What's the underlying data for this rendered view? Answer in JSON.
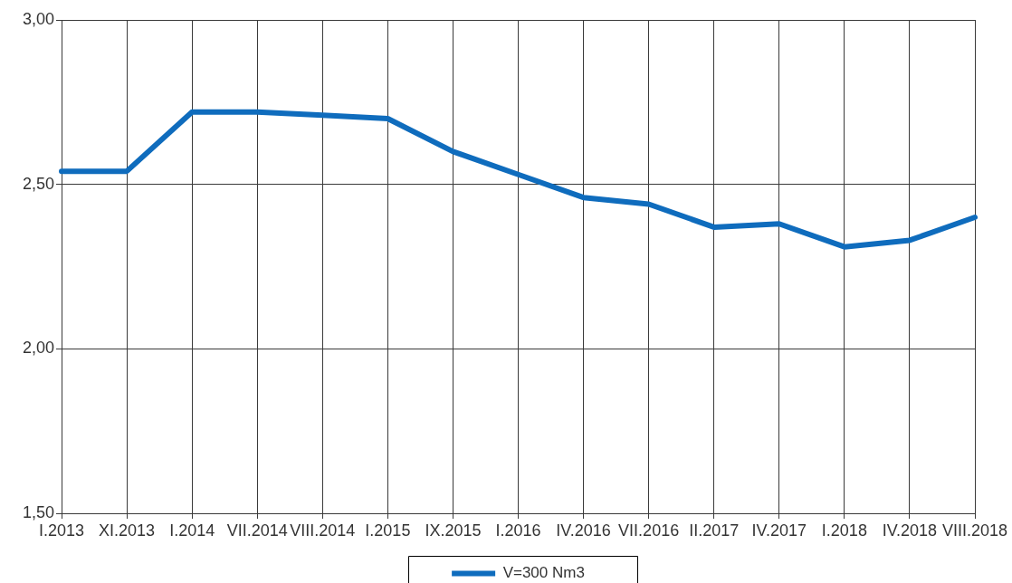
{
  "chart_data": {
    "type": "line",
    "categories": [
      "I.2013",
      "XI.2013",
      "I.2014",
      "VII.2014",
      "VIII.2014",
      "I.2015",
      "IX.2015",
      "I.2016",
      "IV.2016",
      "VII.2016",
      "II.2017",
      "IV.2017",
      "I.2018",
      "IV.2018",
      "VIII.2018"
    ],
    "series": [
      {
        "name": "V=300 Nm3",
        "color": "#0f6cbd",
        "values": [
          2.54,
          2.54,
          2.72,
          2.72,
          2.71,
          2.7,
          2.6,
          2.53,
          2.46,
          2.44,
          2.37,
          2.38,
          2.31,
          2.33,
          2.4
        ]
      }
    ],
    "ylim": [
      1.5,
      3
    ],
    "yticks": [
      {
        "value": 1.5,
        "label": "1,50"
      },
      {
        "value": 2,
        "label": "2,00"
      },
      {
        "value": 2.5,
        "label": "2,50"
      },
      {
        "value": 3,
        "label": "3,00"
      }
    ],
    "grid": true,
    "legend": "bottom",
    "marker": "none",
    "line_style": "solid"
  }
}
